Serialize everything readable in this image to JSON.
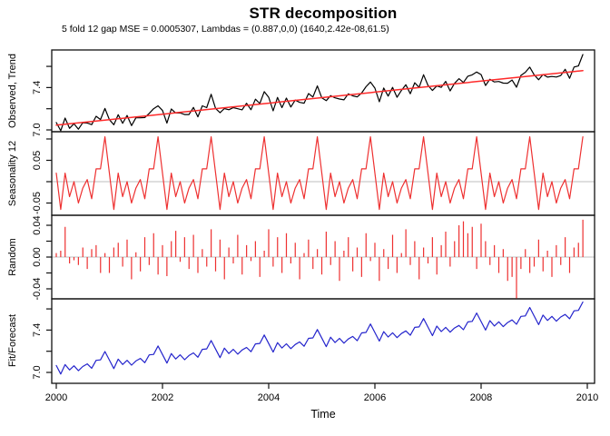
{
  "chart_data": {
    "type": "line",
    "title": "STR decomposition",
    "subtitle": "5 fold 12 gap MSE = 0.0005307, Lambdas = (0.887,0,0) (1640,2.42e-08,61.5)",
    "xlabel": "Time",
    "x_start": 2000.0,
    "x_interval_years": 0.0833333,
    "n_points": 120,
    "x_ticks": [
      2000,
      2002,
      2004,
      2006,
      2008,
      2010
    ],
    "xlim": [
      1999.9,
      2010.14
    ],
    "composition": "observed = trend + seasonality12 + random; fit = trend + seasonality12",
    "colors": {
      "observed": "#000000",
      "trend": "#ff2a2a",
      "seasonality": "#ee3030",
      "random": "#ee3030",
      "fit": "#2424cc",
      "zero_line": "#cccccc",
      "axis": "#111111"
    },
    "trend_line": {
      "shape": "linear",
      "start_value": 7.045,
      "end_value": 7.56
    },
    "seasonality_pattern_monthly": [
      0.02,
      -0.065,
      0.02,
      -0.035,
      0.0,
      -0.05,
      -0.015,
      0.005,
      -0.04,
      0.03,
      0.03,
      0.105
    ],
    "random_values": [
      0.005,
      0.008,
      0.038,
      -0.008,
      -0.004,
      -0.01,
      0.012,
      -0.015,
      0.01,
      0.015,
      -0.02,
      0.005,
      -0.02,
      0.012,
      0.018,
      -0.012,
      0.022,
      -0.028,
      0.006,
      -0.018,
      0.025,
      -0.01,
      0.03,
      -0.022,
      0.015,
      -0.024,
      0.02,
      0.033,
      -0.006,
      0.025,
      -0.015,
      0.028,
      -0.02,
      0.01,
      -0.012,
      0.035,
      -0.018,
      0.022,
      -0.028,
      0.012,
      -0.008,
      0.028,
      -0.022,
      0.015,
      -0.005,
      0.02,
      -0.025,
      0.008,
      0.035,
      -0.012,
      0.025,
      -0.02,
      0.03,
      -0.008,
      0.018,
      -0.028,
      0.005,
      0.022,
      -0.015,
      0.01,
      -0.022,
      0.032,
      -0.01,
      0.02,
      -0.03,
      0.008,
      0.025,
      -0.018,
      0.012,
      -0.025,
      0.03,
      -0.005,
      0.018,
      -0.03,
      0.01,
      -0.015,
      0.028,
      -0.02,
      0.005,
      0.035,
      -0.01,
      0.02,
      -0.028,
      0.012,
      -0.008,
      0.025,
      -0.022,
      0.015,
      0.032,
      -0.012,
      0.02,
      0.04,
      0.045,
      0.03,
      0.038,
      -0.015,
      0.042,
      0.02,
      -0.01,
      0.015,
      -0.02,
      0.01,
      -0.03,
      -0.025,
      -0.052,
      -0.015,
      0.01,
      -0.02,
      -0.012,
      0.022,
      -0.018,
      0.008,
      -0.025,
      0.015,
      -0.01,
      0.025,
      -0.02,
      0.012,
      0.018,
      0.047
    ],
    "panels": [
      {
        "ylabel": "Observed, Trend",
        "series": [
          "observed",
          "trend"
        ],
        "ytick_values": [
          7.0,
          7.2,
          7.4,
          7.6
        ],
        "ytick_labels": [
          "7.0",
          "",
          "7.4",
          ""
        ],
        "ylim": [
          6.983,
          7.755
        ],
        "zero_line": false
      },
      {
        "ylabel": "Seasonality 12",
        "series": [
          "seasonality"
        ],
        "ytick_values": [
          -0.05,
          0.0,
          0.05,
          0.1
        ],
        "ytick_labels": [
          "-0.05",
          "",
          "0.05",
          ""
        ],
        "ylim": [
          -0.0787,
          0.117
        ],
        "zero_line": true
      },
      {
        "ylabel": "Random",
        "series": [
          "random"
        ],
        "style": "needles",
        "ytick_values": [
          -0.04,
          -0.02,
          0.0,
          0.02,
          0.04
        ],
        "ytick_labels": [
          "-0.04",
          "",
          "0.00",
          "",
          "0.04"
        ],
        "ylim": [
          -0.0526,
          0.0526
        ],
        "zero_line": true
      },
      {
        "ylabel": "Fit/Forecast",
        "series": [
          "fit"
        ],
        "ytick_values": [
          7.0,
          7.2,
          7.4,
          7.6
        ],
        "ytick_labels": [
          "7.0",
          "",
          "7.4",
          ""
        ],
        "ylim": [
          6.897,
          7.695
        ],
        "zero_line": false
      }
    ]
  }
}
